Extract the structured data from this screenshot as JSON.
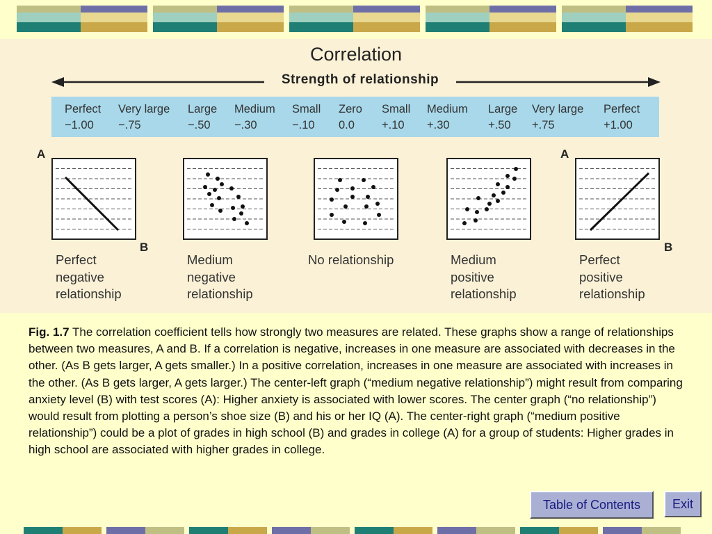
{
  "figure": {
    "title": "Correlation",
    "strength_label": "Strength of relationship",
    "scale": [
      {
        "label": "Perfect",
        "value": "−1.00"
      },
      {
        "label": "Very large",
        "value": "−.75"
      },
      {
        "label": "Large",
        "value": "−.50"
      },
      {
        "label": "Medium",
        "value": "−.30"
      },
      {
        "label": "Small",
        "value": "−.10"
      },
      {
        "label": "Zero",
        "value": "0.0"
      },
      {
        "label": "Small",
        "value": "+.10"
      },
      {
        "label": "Medium",
        "value": "+.30"
      },
      {
        "label": "Large",
        "value": "+.50"
      },
      {
        "label": "Very large",
        "value": "+.75"
      },
      {
        "label": "Perfect",
        "value": "+1.00"
      }
    ],
    "axis_a": "A",
    "axis_b": "B",
    "graphs": [
      {
        "caption": "Perfect\nnegative\nrelationship"
      },
      {
        "caption": "Medium\nnegative\nrelationship"
      },
      {
        "caption": "No relationship"
      },
      {
        "caption": "Medium\npositive\nrelationship"
      },
      {
        "caption": "Perfect\npositive\nrelationship"
      }
    ]
  },
  "description": {
    "fig_label": "Fig. 1.7",
    "text": " The correlation coefficient tells how strongly two measures are related. These graphs show a range of relationships between two measures, A and B. If a correlation is negative, increases in one measure are associated with decreases in the other. (As B gets larger, A gets smaller.) In a positive correlation, increases in one measure are associated with increases in the other. (As B gets larger, A gets larger.) The center-left graph (“medium negative relationship”) might result from comparing anxiety level (B) with test scores (A): Higher anxiety is associated with lower scores. The center graph (“no relationship”) would result from plotting a person’s shoe size (B) and his or her IQ (A). The center-right graph (“medium positive relationship”) could be a plot of grades in high school (B) and grades in college (A) for a group of students: Higher grades in high school are associated with higher grades in college."
  },
  "nav": {
    "toc_label": "Table of Contents",
    "exit_label": "Exit"
  },
  "colors": {
    "page_background": "#ffffcc",
    "figure_background": "#fbf1d6",
    "scale_band": "#a8d8ea",
    "button": "#a9b0d4"
  }
}
